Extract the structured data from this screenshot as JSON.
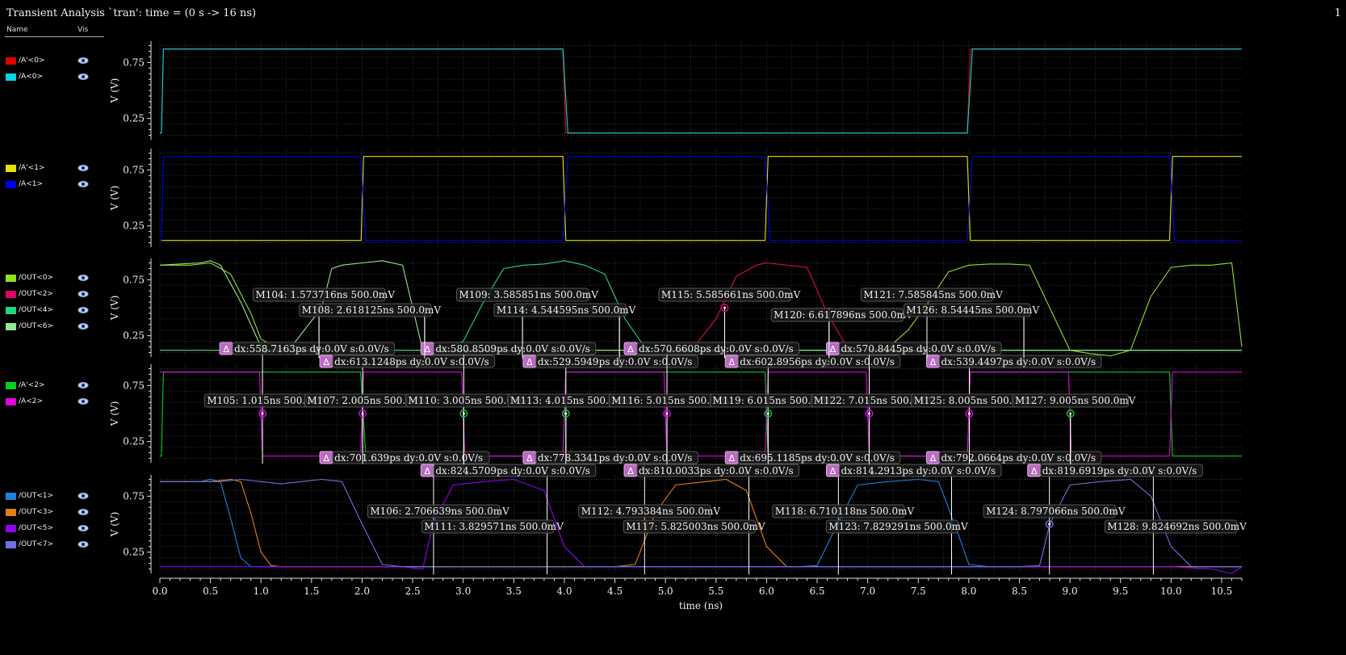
{
  "window": {
    "title": "Transient Analysis `tran': time = (0 s -> 16 ns)",
    "page_number": "1"
  },
  "legend_header": {
    "name": "Name",
    "vis": "Vis"
  },
  "colors": {
    "background": "#000000",
    "grid": "#3a3a3a",
    "axis": "#e0e0e0",
    "label": "#f0f0f0"
  },
  "icons": {
    "visibility": "eye-icon",
    "delta_marker": "delta-icon"
  },
  "chart_data": {
    "type": "line",
    "xlabel": "time (ns)",
    "xlim": [
      0,
      10.7
    ],
    "x_ticks": [
      "0.0",
      "0.5",
      "1.0",
      "1.5",
      "2.0",
      "2.5",
      "3.0",
      "3.5",
      "4.0",
      "4.5",
      "5.0",
      "5.5",
      "6.0",
      "6.5",
      "7.0",
      "7.5",
      "8.0",
      "8.5",
      "9.0",
      "9.5",
      "10.0",
      "10.5"
    ],
    "grid": true,
    "panels": [
      {
        "ylabel": "V (V)",
        "ylim": [
          0.06,
          0.94
        ],
        "yticks": [
          "0.75",
          "0.25"
        ],
        "series": [
          {
            "name": "/A'<0>",
            "color": "#e00000",
            "x": [
              0,
              0.015,
              0.035,
              3.985,
              4.015,
              7.985,
              8.015,
              10.7
            ],
            "y": [
              0.12,
              0.12,
              0.87,
              0.87,
              0.12,
              0.12,
              0.87,
              0.87
            ]
          },
          {
            "name": "/A<0>",
            "color": "#00d8e0",
            "x": [
              0,
              0.015,
              0.035,
              3.985,
              4.035,
              7.985,
              8.035,
              10.7
            ],
            "y": [
              0.12,
              0.12,
              0.87,
              0.87,
              0.12,
              0.12,
              0.87,
              0.87
            ]
          }
        ]
      },
      {
        "ylabel": "V (V)",
        "ylim": [
          0.06,
          0.94
        ],
        "yticks": [
          "0.75",
          "0.25"
        ],
        "series": [
          {
            "name": "/A'<1>",
            "color": "#e8e000",
            "x": [
              0,
              1.99,
              2.015,
              3.985,
              4.015,
              5.985,
              6.015,
              7.985,
              8.015,
              9.985,
              10.015,
              10.7
            ],
            "y": [
              0.12,
              0.12,
              0.87,
              0.87,
              0.12,
              0.12,
              0.87,
              0.87,
              0.12,
              0.12,
              0.87,
              0.87
            ]
          },
          {
            "name": "/A<1>",
            "color": "#0000f0",
            "x": [
              0,
              0.015,
              0.035,
              1.985,
              2.035,
              3.985,
              4.035,
              5.985,
              6.035,
              7.985,
              8.035,
              9.985,
              10.035,
              10.7
            ],
            "y": [
              0.12,
              0.12,
              0.87,
              0.87,
              0.12,
              0.12,
              0.87,
              0.87,
              0.12,
              0.12,
              0.87,
              0.87,
              0.12,
              0.12
            ]
          }
        ]
      },
      {
        "ylabel": "V (V)",
        "ylim": [
          0.06,
          0.94
        ],
        "yticks": [
          "0.75",
          "0.25"
        ],
        "series": [
          {
            "name": "/OUT<0>",
            "color": "#90e020",
            "x": [
              0,
              0.3,
              0.5,
              0.7,
              0.9,
              1.0,
              1.2,
              1.3,
              1.5,
              1.6,
              1.8,
              2.0,
              2.2,
              2.4,
              2.6,
              2.9,
              3.1,
              3.3,
              3.5,
              3.7,
              3.9,
              4.0,
              4.1,
              5.0,
              6.0,
              7.0,
              7.2,
              7.4,
              7.6,
              7.8,
              8.0,
              8.2,
              8.4,
              8.6,
              9.0,
              9.2,
              9.4,
              9.6,
              9.8,
              10.0,
              10.2,
              10.4,
              10.6,
              10.7
            ],
            "y": [
              0.88,
              0.88,
              0.9,
              0.8,
              0.45,
              0.22,
              0.12,
              0.12,
              0.12,
              0.13,
              0.12,
              0.12,
              0.12,
              0.12,
              0.12,
              0.11,
              0.11,
              0.12,
              0.12,
              0.12,
              0.12,
              0.12,
              0.12,
              0.12,
              0.12,
              0.12,
              0.14,
              0.3,
              0.55,
              0.82,
              0.88,
              0.89,
              0.89,
              0.88,
              0.12,
              0.09,
              0.07,
              0.12,
              0.6,
              0.86,
              0.88,
              0.88,
              0.9,
              0.15
            ]
          },
          {
            "name": "/OUT<2>",
            "color": "#e0006e",
            "x": [
              0,
              4.9,
              5.1,
              5.3,
              5.5,
              5.7,
              5.9,
              6.0,
              6.2,
              6.4,
              6.6,
              6.8,
              7.0,
              10.7
            ],
            "y": [
              0.12,
              0.12,
              0.12,
              0.17,
              0.4,
              0.78,
              0.88,
              0.9,
              0.88,
              0.86,
              0.45,
              0.14,
              0.12,
              0.12
            ]
          },
          {
            "name": "/OUT<4>",
            "color": "#20d880",
            "x": [
              0,
              2.6,
              2.8,
              3.0,
              3.2,
              3.4,
              3.6,
              3.8,
              4.0,
              4.2,
              4.4,
              4.6,
              4.8,
              5.0,
              10.7
            ],
            "y": [
              0.12,
              0.12,
              0.13,
              0.2,
              0.55,
              0.85,
              0.88,
              0.89,
              0.92,
              0.88,
              0.8,
              0.4,
              0.14,
              0.12,
              0.12
            ]
          },
          {
            "name": "/OUT<6>",
            "color": "#90e890",
            "x": [
              0,
              0.4,
              0.5,
              0.6,
              0.8,
              1.0,
              1.1,
              1.3,
              1.6,
              1.7,
              1.8,
              2.0,
              2.2,
              2.4,
              2.6,
              10.7
            ],
            "y": [
              0.88,
              0.9,
              0.92,
              0.88,
              0.55,
              0.15,
              0.12,
              0.15,
              0.5,
              0.85,
              0.88,
              0.9,
              0.92,
              0.88,
              0.12,
              0.12
            ]
          }
        ]
      },
      {
        "ylabel": "V (V)",
        "ylim": [
          0.06,
          0.94
        ],
        "yticks": [
          "0.75",
          "0.25"
        ],
        "series": [
          {
            "name": "/A'<2>",
            "color": "#00d020",
            "x": [
              0,
              0.015,
              0.035,
              1.985,
              2.035,
              3.985,
              4.015,
              5.985,
              6.015,
              7.985,
              8.015,
              9.985,
              10.015,
              10.7
            ],
            "y": [
              0.12,
              0.12,
              0.87,
              0.87,
              0.12,
              0.12,
              0.87,
              0.87,
              0.12,
              0.12,
              0.87,
              0.87,
              0.12,
              0.12
            ]
          },
          {
            "name": "/A<2>",
            "color": "#e000e0",
            "x": [
              0,
              0.985,
              1.015,
              1.985,
              2.015,
              2.985,
              3.015,
              3.985,
              4.015,
              4.985,
              5.015,
              5.985,
              6.015,
              6.985,
              7.015,
              7.985,
              8.015,
              8.985,
              9.015,
              9.985,
              10.015,
              10.7
            ],
            "y": [
              0.87,
              0.87,
              0.12,
              0.12,
              0.87,
              0.87,
              0.12,
              0.12,
              0.87,
              0.87,
              0.12,
              0.12,
              0.87,
              0.87,
              0.12,
              0.12,
              0.87,
              0.87,
              0.12,
              0.12,
              0.87,
              0.87
            ]
          }
        ]
      },
      {
        "ylabel": "V (V)",
        "ylim": [
          0.06,
          0.94
        ],
        "yticks": [
          "0.75",
          "0.25"
        ],
        "series": [
          {
            "name": "/OUT<1>",
            "color": "#2080e0",
            "x": [
              0,
              0.4,
              0.5,
              0.6,
              0.7,
              0.8,
              0.9,
              1.0,
              1.2,
              6.3,
              6.5,
              6.7,
              6.9,
              7.2,
              7.5,
              7.7,
              7.9,
              8.0,
              8.2,
              8.4,
              10.7
            ],
            "y": [
              0.88,
              0.88,
              0.9,
              0.88,
              0.55,
              0.2,
              0.12,
              0.12,
              0.12,
              0.12,
              0.13,
              0.5,
              0.85,
              0.88,
              0.9,
              0.88,
              0.4,
              0.14,
              0.12,
              0.12,
              0.12
            ]
          },
          {
            "name": "/OUT<3>",
            "color": "#e08010",
            "x": [
              0,
              0.5,
              0.7,
              0.8,
              0.9,
              1.0,
              1.1,
              1.2,
              1.3,
              4.5,
              4.7,
              4.9,
              5.1,
              5.4,
              5.6,
              5.8,
              6.0,
              6.2,
              10.7
            ],
            "y": [
              0.88,
              0.88,
              0.9,
              0.88,
              0.6,
              0.25,
              0.13,
              0.12,
              0.12,
              0.12,
              0.14,
              0.6,
              0.85,
              0.88,
              0.9,
              0.8,
              0.3,
              0.12,
              0.12
            ]
          },
          {
            "name": "/OUT<5>",
            "color": "#9000f0",
            "x": [
              0,
              2.4,
              2.6,
              2.7,
              2.9,
              3.2,
              3.5,
              3.8,
              4.0,
              4.2,
              4.4,
              10.0,
              10.2,
              10.4,
              10.6,
              10.7
            ],
            "y": [
              0.12,
              0.12,
              0.1,
              0.5,
              0.85,
              0.88,
              0.9,
              0.8,
              0.3,
              0.12,
              0.12,
              0.12,
              0.11,
              0.1,
              0.06,
              0.12
            ]
          },
          {
            "name": "/OUT<7>",
            "color": "#7070e0",
            "x": [
              0,
              0.6,
              0.8,
              1.0,
              1.2,
              1.4,
              1.6,
              1.8,
              2.0,
              2.2,
              2.4,
              8.5,
              8.7,
              8.8,
              9.0,
              9.3,
              9.6,
              9.8,
              10.0,
              10.2,
              10.4,
              10.7
            ],
            "y": [
              0.88,
              0.88,
              0.9,
              0.88,
              0.86,
              0.88,
              0.9,
              0.88,
              0.5,
              0.14,
              0.12,
              0.12,
              0.13,
              0.5,
              0.85,
              0.88,
              0.9,
              0.75,
              0.3,
              0.12,
              0.12,
              0.12
            ]
          }
        ]
      }
    ],
    "markers": [
      {
        "panel": 2,
        "x": 1.573716,
        "color": "#90e890",
        "label": "M104: 1.573716ns 500.0mV",
        "pos": "above"
      },
      {
        "panel": 2,
        "x": 3.585851,
        "color": "#20d880",
        "label": "M109: 3.585851ns 500.0mV",
        "pos": "above"
      },
      {
        "panel": 2,
        "x": 5.585661,
        "color": "#e0006e",
        "label": "M115: 5.585661ns 500.0mV",
        "pos": "above"
      },
      {
        "panel": 2,
        "x": 7.585845,
        "color": "#90e020",
        "label": "M121: 7.585845ns 500.0mV",
        "pos": "above"
      },
      {
        "panel": 2,
        "x": 2.618125,
        "color": "#90e890",
        "label": "M108: 2.618125ns 500.0mV",
        "pos": "belowleft",
        "nodot": true
      },
      {
        "panel": 2,
        "x": 4.544595,
        "color": "#20d880",
        "label": "M114: 4.544595ns 500.0mV",
        "pos": "belowleft",
        "nodot": true
      },
      {
        "panel": 2,
        "x": 6.617896,
        "color": "#e0006e",
        "label": "M120: 6.617896ns 500.0mV",
        "pos": "lower",
        "nodot": true
      },
      {
        "panel": 2,
        "x": 8.54445,
        "color": "#90e020",
        "label": "M126: 8.54445ns 500.0mV",
        "pos": "belowleft",
        "nodot": true
      },
      {
        "panel": 3,
        "x": 1.015,
        "color": "#e000e0",
        "label": "M105: 1.015ns 500.0mV",
        "pos": "above"
      },
      {
        "panel": 3,
        "x": 2.005,
        "color": "#e000e0",
        "label": "M107: 2.005ns 500.0mV",
        "pos": "above"
      },
      {
        "panel": 3,
        "x": 3.005,
        "color": "#00d020",
        "label": "M110: 3.005ns 500.0mV",
        "pos": "above"
      },
      {
        "panel": 3,
        "x": 4.015,
        "color": "#00d020",
        "label": "M113: 4.015ns 500.0mV",
        "pos": "above"
      },
      {
        "panel": 3,
        "x": 5.015,
        "color": "#e000e0",
        "label": "M116: 5.015ns 500.0mV",
        "pos": "above"
      },
      {
        "panel": 3,
        "x": 6.015,
        "color": "#00d020",
        "label": "M119: 6.015ns 500.0mV",
        "pos": "above"
      },
      {
        "panel": 3,
        "x": 7.015,
        "color": "#e000e0",
        "label": "M122: 7.015ns 500.0mV",
        "pos": "above"
      },
      {
        "panel": 3,
        "x": 8.005,
        "color": "#e000e0",
        "label": "M125: 8.005ns 500.0mV",
        "pos": "above"
      },
      {
        "panel": 3,
        "x": 9.005,
        "color": "#00d020",
        "label": "M127: 9.005ns 500.0mV",
        "pos": "above"
      },
      {
        "panel": 4,
        "x": 2.706639,
        "color": "#9000f0",
        "label": "M106: 2.706639ns 500.0mV",
        "pos": "above"
      },
      {
        "panel": 4,
        "x": 4.793384,
        "color": "#e08010",
        "label": "M112: 4.793384ns 500.0mV",
        "pos": "above"
      },
      {
        "panel": 4,
        "x": 6.710118,
        "color": "#2080e0",
        "label": "M118: 6.710118ns 500.0mV",
        "pos": "above"
      },
      {
        "panel": 4,
        "x": 8.797066,
        "color": "#7070e0",
        "label": "M124: 8.797066ns 500.0mV",
        "pos": "above"
      },
      {
        "panel": 4,
        "x": 3.829571,
        "color": "#9000f0",
        "label": "M111: 3.829571ns 500.0mV",
        "pos": "belowleft",
        "nodot": true
      },
      {
        "panel": 4,
        "x": 5.825003,
        "color": "#e08010",
        "label": "M117: 5.825003ns 500.0mV",
        "pos": "belowleft",
        "nodot": true
      },
      {
        "panel": 4,
        "x": 7.829291,
        "color": "#2080e0",
        "label": "M123: 7.829291ns 500.0mV",
        "pos": "belowleft",
        "nodot": true
      },
      {
        "panel": 4,
        "x": 9.824692,
        "color": "#7070e0",
        "label": "M128: 9.824692ns 500.0mV",
        "pos": "belowright",
        "nodot": true
      }
    ],
    "deltas": [
      {
        "x1": 1.015,
        "x2": 1.573716,
        "row": 0,
        "label": "dx:558.7163ps dy:0.0V s:0.0V/s"
      },
      {
        "x1": 2.005,
        "x2": 2.618125,
        "row": 1,
        "label": "dx:613.1248ps dy:0.0V s:0.0V/s"
      },
      {
        "x1": 3.005,
        "x2": 3.585851,
        "row": 0,
        "label": "dx:580.8509ps dy:0.0V s:0.0V/s"
      },
      {
        "x1": 4.015,
        "x2": 4.544595,
        "row": 1,
        "label": "dx:529.5949ps dy:0.0V s:0.0V/s"
      },
      {
        "x1": 5.015,
        "x2": 5.585661,
        "row": 0,
        "label": "dx:570.6608ps dy:0.0V s:0.0V/s"
      },
      {
        "x1": 6.015,
        "x2": 6.617896,
        "row": 1,
        "label": "dx:602.8956ps dy:0.0V s:0.0V/s"
      },
      {
        "x1": 7.015,
        "x2": 7.585845,
        "row": 0,
        "label": "dx:570.8445ps dy:0.0V s:0.0V/s"
      },
      {
        "x1": 8.005,
        "x2": 8.54445,
        "row": 1,
        "label": "dx:539.4497ps dy:0.0V s:0.0V/s"
      },
      {
        "x1": 2.005,
        "x2": 2.706639,
        "row": 2,
        "label": "dx:701.639ps dy:0.0V s:0.0V/s"
      },
      {
        "x1": 3.005,
        "x2": 3.829571,
        "row": 3,
        "label": "dx:824.5709ps dy:0.0V s:0.0V/s"
      },
      {
        "x1": 4.015,
        "x2": 4.793384,
        "row": 2,
        "label": "dx:778.3341ps dy:0.0V s:0.0V/s"
      },
      {
        "x1": 5.015,
        "x2": 5.825003,
        "row": 3,
        "label": "dx:810.0033ps dy:0.0V s:0.0V/s"
      },
      {
        "x1": 6.015,
        "x2": 6.710118,
        "row": 2,
        "label": "dx:695.1185ps dy:0.0V s:0.0V/s"
      },
      {
        "x1": 7.015,
        "x2": 7.829291,
        "row": 3,
        "label": "dx:814.2913ps dy:0.0V s:0.0V/s"
      },
      {
        "x1": 8.005,
        "x2": 8.797066,
        "row": 2,
        "label": "dx:792.0664ps dy:0.0V s:0.0V/s"
      },
      {
        "x1": 9.005,
        "x2": 9.824692,
        "row": 3,
        "label": "dx:819.6919ps dy:0.0V s:0.0V/s"
      }
    ]
  }
}
